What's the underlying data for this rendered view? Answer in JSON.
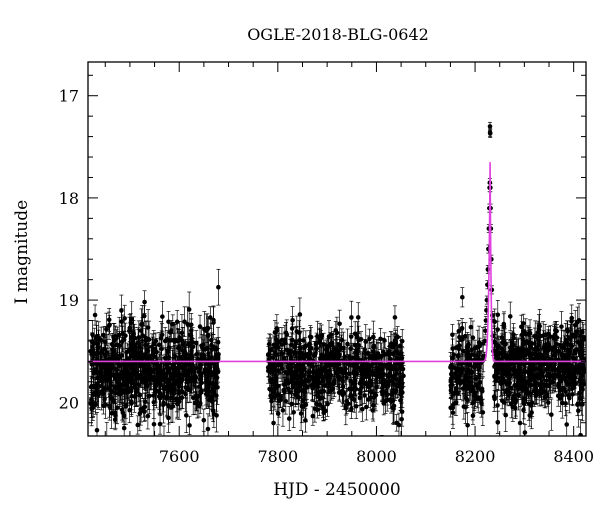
{
  "chart_data": {
    "type": "scatter",
    "title": "OGLE-2018-BLG-0642",
    "xlabel": "HJD - 2450000",
    "ylabel": "I magnitude",
    "xlim": [
      7415,
      8425
    ],
    "ylim": [
      20.33,
      16.67
    ],
    "y_inverted": true,
    "x_ticks": [
      7600,
      7800,
      8000,
      8200,
      8400
    ],
    "x_tick_labels": [
      "7600",
      "7800",
      "8000",
      "8200",
      "8400"
    ],
    "y_ticks": [
      17,
      18,
      19,
      20
    ],
    "y_tick_labels": [
      "17",
      "18",
      "19",
      "20"
    ],
    "x_minor_step": 50,
    "y_minor_step": 0.2,
    "grid": false,
    "baseline_magnitude": 19.6,
    "colors": {
      "data": "#000000",
      "model": "#e040e0"
    },
    "series": [
      {
        "kind": "data",
        "style": "points-with-errorbars",
        "segments": [
          {
            "x_range": [
              7420,
              7680
            ],
            "n": 700,
            "mean": 19.68,
            "scatter": 0.22,
            "err": 0.13
          },
          {
            "x_range": [
              7780,
              8055
            ],
            "n": 620,
            "mean": 19.7,
            "scatter": 0.2,
            "err": 0.12
          },
          {
            "x_range": [
              8150,
              8218
            ],
            "n": 150,
            "mean": 19.72,
            "scatter": 0.22,
            "err": 0.12
          },
          {
            "x_range": [
              8238,
              8422
            ],
            "n": 520,
            "mean": 19.66,
            "scatter": 0.2,
            "err": 0.12
          }
        ],
        "event_points": [
          {
            "x": 8219,
            "y": 19.55
          },
          {
            "x": 8220,
            "y": 19.4
          },
          {
            "x": 8221,
            "y": 19.3
          },
          {
            "x": 8222,
            "y": 19.2
          },
          {
            "x": 8223,
            "y": 19.1
          },
          {
            "x": 8224,
            "y": 19.0
          },
          {
            "x": 8225,
            "y": 18.85
          },
          {
            "x": 8226,
            "y": 18.7
          },
          {
            "x": 8227,
            "y": 18.5
          },
          {
            "x": 8228,
            "y": 18.3
          },
          {
            "x": 8229,
            "y": 18.1
          },
          {
            "x": 8229.5,
            "y": 17.9
          },
          {
            "x": 8230,
            "y": 17.85
          },
          {
            "x": 8230.3,
            "y": 17.3
          },
          {
            "x": 8230.5,
            "y": 17.36
          },
          {
            "x": 8230.7,
            "y": 17.37
          },
          {
            "x": 8231,
            "y": 17.9
          },
          {
            "x": 8231.5,
            "y": 18.1
          },
          {
            "x": 8232,
            "y": 18.3
          },
          {
            "x": 8233,
            "y": 18.6
          },
          {
            "x": 8234,
            "y": 18.9
          },
          {
            "x": 8235,
            "y": 19.15
          },
          {
            "x": 8236,
            "y": 19.35
          },
          {
            "x": 8237,
            "y": 19.5
          }
        ]
      },
      {
        "kind": "model",
        "style": "line",
        "baseline": 19.6,
        "t0": 8230.5,
        "peak": 17.65,
        "rise_from": 8212,
        "rise_to": 8229.5,
        "fall_from": 8231.5,
        "fall_to": 8240
      }
    ]
  }
}
